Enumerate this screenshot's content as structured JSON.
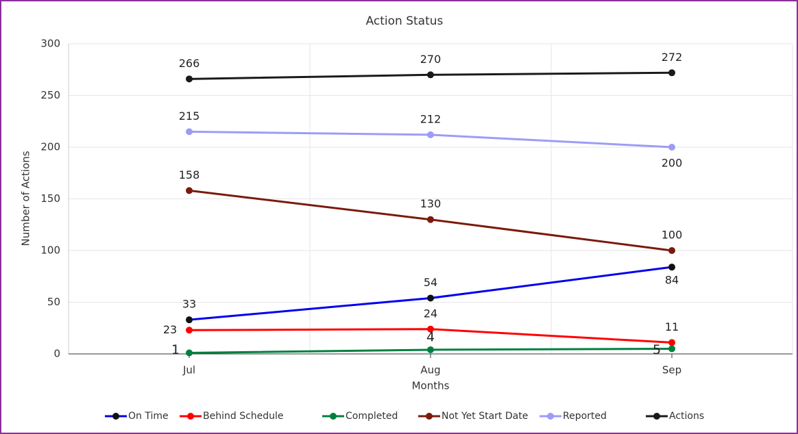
{
  "chart_data": {
    "type": "line",
    "title": "Action Status",
    "x_label": "Months",
    "y_label": "Number of Actions",
    "categories": [
      "Jul",
      "Aug",
      "Sep"
    ],
    "series": [
      {
        "name": "On Time",
        "color": "#0000ee",
        "values": [
          33,
          54,
          84
        ]
      },
      {
        "name": "Behind Schedule",
        "color": "#ff0000",
        "values": [
          23,
          24,
          11
        ]
      },
      {
        "name": "Completed",
        "color": "#008040",
        "values": [
          1,
          4,
          5
        ]
      },
      {
        "name": "Not Yet Start Date",
        "color": "#7b1a0c",
        "values": [
          158,
          130,
          100
        ]
      },
      {
        "name": "Reported",
        "color": "#9c9cf7",
        "values": [
          215,
          212,
          200
        ]
      },
      {
        "name": "Actions",
        "color": "#1a1a1a",
        "values": [
          266,
          270,
          272
        ]
      }
    ],
    "ylim": [
      0,
      300
    ],
    "yticks": [
      0,
      50,
      100,
      150,
      200,
      250,
      300
    ],
    "grid": true,
    "legend": "bottom"
  }
}
